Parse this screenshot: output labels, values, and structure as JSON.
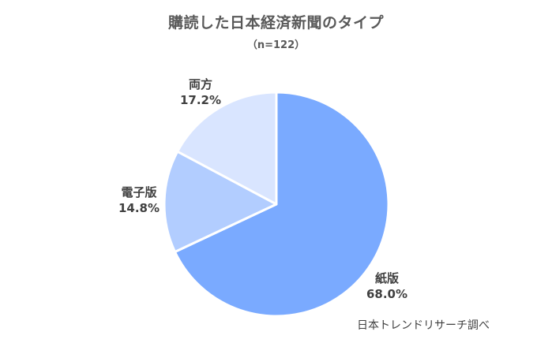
{
  "chart_data": {
    "type": "pie",
    "title": "購読した日本経済新聞のタイプ",
    "subtitle": "（n=122）",
    "slices": [
      {
        "label": "紙版",
        "value": 68.0,
        "value_label": "68.0%",
        "color": "#7aaaff"
      },
      {
        "label": "電子版",
        "value": 14.8,
        "value_label": "14.8%",
        "color": "#b2cdff"
      },
      {
        "label": "両方",
        "value": 17.2,
        "value_label": "17.2%",
        "color": "#d9e5ff"
      }
    ],
    "start_angle": "top, clockwise",
    "legend": "none"
  },
  "source": "日本トレンドリサーチ調べ"
}
